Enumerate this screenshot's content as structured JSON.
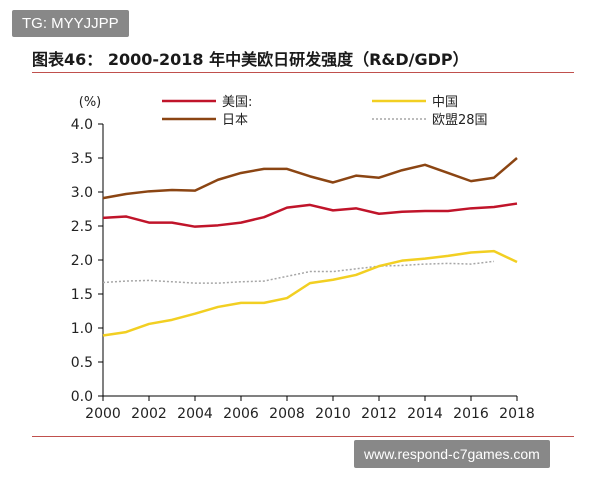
{
  "watermark_top": "TG: MYYJJPP",
  "watermark_bottom": "www.respond-c7games.com",
  "colors": {
    "us": "#c0142a",
    "japan": "#8b4513",
    "china": "#f2cf22",
    "eu": "#a6a6a6",
    "rule": "#c0504d"
  },
  "chart_data": {
    "type": "line",
    "title": "图表46： 2000-2018 年中美欧日研发强度（R&D/GDP）",
    "ylabel": "(%)",
    "xlabel": "",
    "ylim": [
      0,
      4.0
    ],
    "xlim": [
      2000,
      2018
    ],
    "y_ticks": [
      "0.0",
      "0.5",
      "1.0",
      "1.5",
      "2.0",
      "2.5",
      "3.0",
      "3.5",
      "4.0"
    ],
    "x_ticks": [
      "2000",
      "2002",
      "2004",
      "2006",
      "2008",
      "2010",
      "2012",
      "2014",
      "2016",
      "2018"
    ],
    "grid": false,
    "legend_position": "top",
    "series": [
      {
        "name": "美国:",
        "key": "us",
        "style": "solid",
        "x": [
          2000,
          2001,
          2002,
          2003,
          2004,
          2005,
          2006,
          2007,
          2008,
          2009,
          2010,
          2011,
          2012,
          2013,
          2014,
          2015,
          2016,
          2017,
          2018
        ],
        "values": [
          2.62,
          2.64,
          2.55,
          2.55,
          2.49,
          2.51,
          2.55,
          2.63,
          2.77,
          2.81,
          2.73,
          2.76,
          2.68,
          2.71,
          2.72,
          2.72,
          2.76,
          2.78,
          2.83
        ]
      },
      {
        "name": "中国",
        "key": "china",
        "style": "solid",
        "x": [
          2000,
          2001,
          2002,
          2003,
          2004,
          2005,
          2006,
          2007,
          2008,
          2009,
          2010,
          2011,
          2012,
          2013,
          2014,
          2015,
          2016,
          2017,
          2018
        ],
        "values": [
          0.89,
          0.94,
          1.06,
          1.12,
          1.21,
          1.31,
          1.37,
          1.37,
          1.44,
          1.66,
          1.71,
          1.78,
          1.91,
          1.99,
          2.02,
          2.06,
          2.11,
          2.13,
          1.97
        ]
      },
      {
        "name": "日本",
        "key": "japan",
        "style": "solid",
        "x": [
          2000,
          2001,
          2002,
          2003,
          2004,
          2005,
          2006,
          2007,
          2008,
          2009,
          2010,
          2011,
          2012,
          2013,
          2014,
          2015,
          2016,
          2017,
          2018
        ],
        "values": [
          2.91,
          2.97,
          3.01,
          3.03,
          3.02,
          3.18,
          3.28,
          3.34,
          3.34,
          3.23,
          3.14,
          3.24,
          3.21,
          3.32,
          3.4,
          3.28,
          3.16,
          3.21,
          3.5
        ]
      },
      {
        "name": "欧盟28国",
        "key": "eu",
        "style": "dotted",
        "x": [
          2000,
          2001,
          2002,
          2003,
          2004,
          2005,
          2006,
          2007,
          2008,
          2009,
          2010,
          2011,
          2012,
          2013,
          2014,
          2015,
          2016,
          2017
        ],
        "values": [
          1.67,
          1.69,
          1.7,
          1.68,
          1.66,
          1.66,
          1.68,
          1.69,
          1.76,
          1.83,
          1.83,
          1.87,
          1.91,
          1.92,
          1.94,
          1.95,
          1.94,
          1.98
        ]
      }
    ]
  }
}
